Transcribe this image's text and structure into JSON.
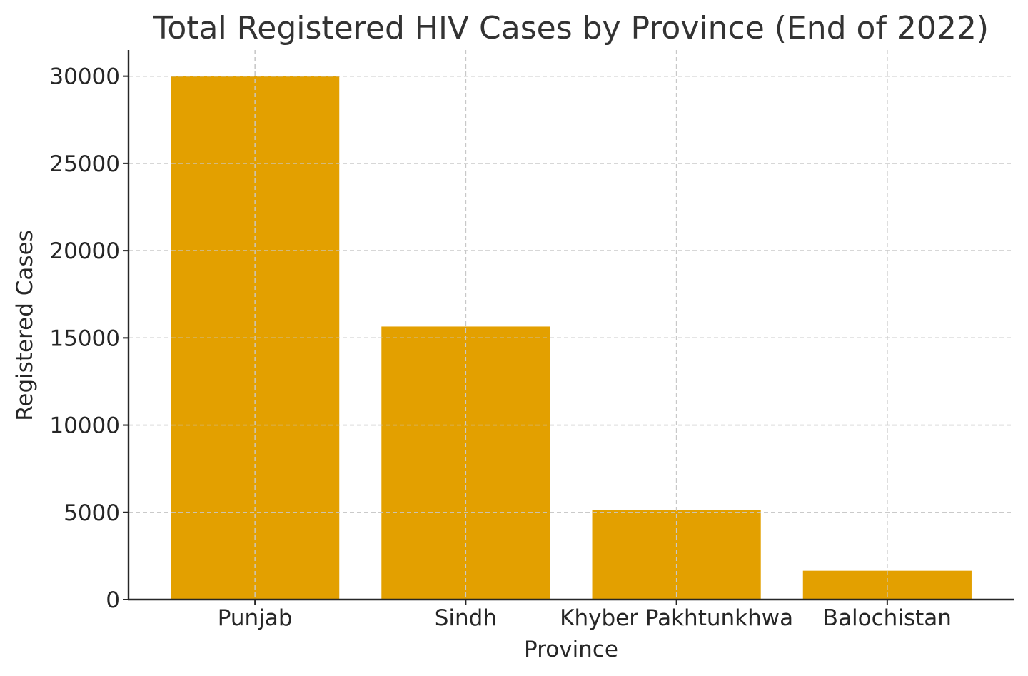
{
  "chart_data": {
    "type": "bar",
    "title": "Total Registered HIV Cases by Province (End of 2022)",
    "xlabel": "Province",
    "ylabel": "Registered Cases",
    "categories": [
      "Punjab",
      "Sindh",
      "Khyber Pakhtunkhwa",
      "Balochistan"
    ],
    "values": [
      30000,
      15650,
      5130,
      1650
    ],
    "ylim": [
      0,
      31500
    ],
    "yticks": [
      0,
      5000,
      10000,
      15000,
      20000,
      25000,
      30000
    ],
    "grid": true,
    "bar_color": "#E3A000"
  }
}
